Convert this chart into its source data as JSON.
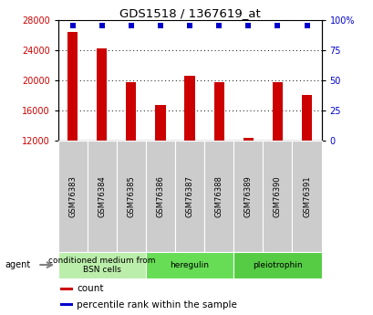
{
  "title": "GDS1518 / 1367619_at",
  "categories": [
    "GSM76383",
    "GSM76384",
    "GSM76385",
    "GSM76386",
    "GSM76387",
    "GSM76388",
    "GSM76389",
    "GSM76390",
    "GSM76391"
  ],
  "counts": [
    26500,
    24300,
    19700,
    16700,
    20600,
    19700,
    12300,
    19700,
    18100
  ],
  "percentiles": [
    99,
    99,
    99,
    98,
    99,
    99,
    90,
    98,
    99
  ],
  "ymin": 12000,
  "ymax": 28000,
  "yticks": [
    12000,
    16000,
    20000,
    24000,
    28000
  ],
  "y2ticks": [
    0,
    25,
    50,
    75,
    100
  ],
  "y2labels": [
    "0",
    "25",
    "50",
    "75",
    "100%"
  ],
  "bar_color": "#cc0000",
  "dot_color": "#0000cc",
  "bar_width": 0.35,
  "groups": [
    {
      "label": "conditioned medium from\nBSN cells",
      "start": 0,
      "end": 2,
      "color": "#bbeeaa"
    },
    {
      "label": "heregulin",
      "start": 3,
      "end": 5,
      "color": "#66dd55"
    },
    {
      "label": "pleiotrophin",
      "start": 6,
      "end": 8,
      "color": "#55cc44"
    }
  ],
  "agent_label": "agent",
  "legend_count": "count",
  "legend_pct": "percentile rank within the sample",
  "bar_color_red": "#cc0000",
  "dot_color_blue": "#0000cc",
  "grid_color": "#000000",
  "tick_bg_color": "#cccccc",
  "group0_color": "#bbeeaa",
  "group1_color": "#66dd55",
  "group2_color": "#55cc44"
}
